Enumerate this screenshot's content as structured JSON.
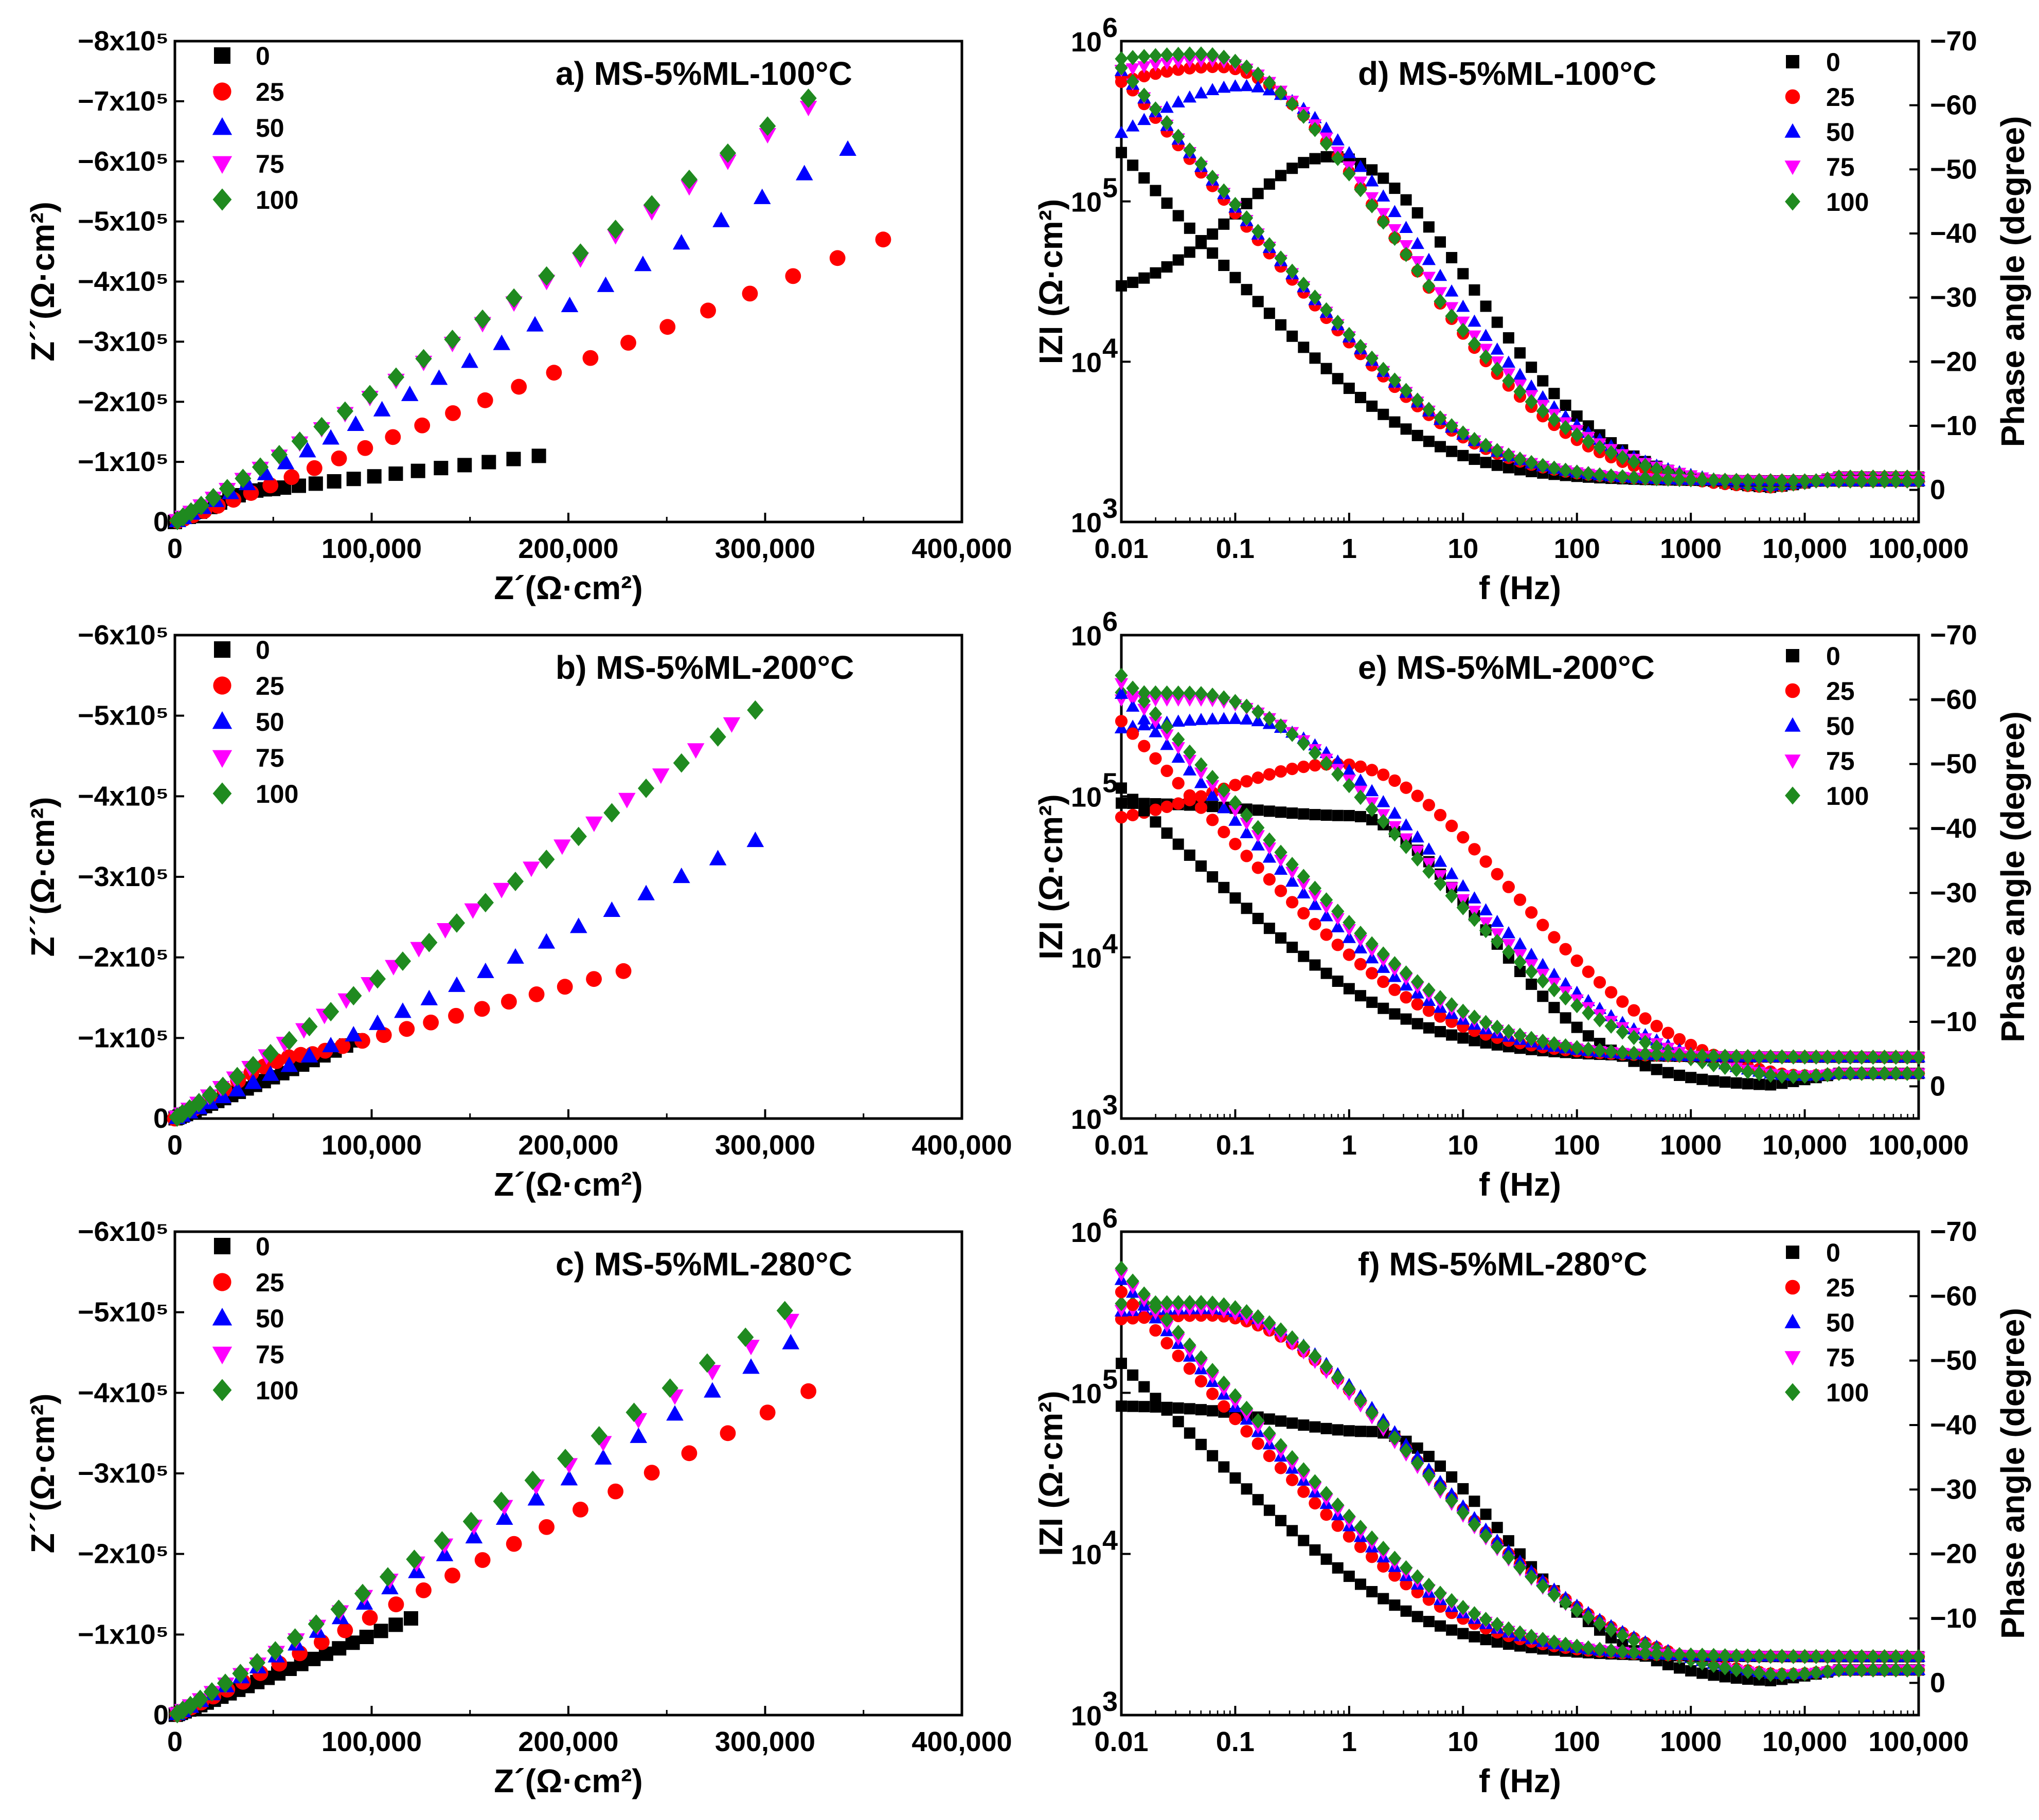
{
  "colors": {
    "s0": "#000000",
    "s25": "#ff0000",
    "s50": "#0000ff",
    "s75": "#ff00ff",
    "s100": "#1f8a1f"
  },
  "series_names": [
    "0",
    "25",
    "50",
    "75",
    "100"
  ],
  "chart_data": [
    {
      "id": "a",
      "type": "scatter",
      "title": "a) MS-5%ML-100°C",
      "xlabel": "Z´(Ω·cm²)",
      "ylabel": "Z´´(Ω·cm²)",
      "xlim": [
        0,
        400000
      ],
      "ylim": [
        0,
        -800000
      ],
      "xticks": [
        0,
        100000,
        200000,
        300000,
        400000
      ],
      "xtick_labels": [
        "0",
        "100,000",
        "200,000",
        "300,000",
        "400,000"
      ],
      "yticks": [
        0,
        -100000,
        -200000,
        -300000,
        -400000,
        -500000,
        -600000,
        -700000,
        -800000
      ],
      "ytick_labels": [
        "0",
        "−1x10⁵",
        "−2x10⁵",
        "−3x10⁵",
        "−4x10⁵",
        "−5x10⁵",
        "−6x10⁵",
        "−7x10⁵",
        "−8x10⁵"
      ],
      "series": [
        {
          "name": "0",
          "end": [
            185000,
            -110000
          ],
          "knee": [
            50000,
            -55000
          ]
        },
        {
          "name": "25",
          "end": [
            360000,
            -470000
          ]
        },
        {
          "name": "50",
          "end": [
            342000,
            -620000
          ]
        },
        {
          "name": "75",
          "end": [
            322000,
            -690000
          ]
        },
        {
          "name": "100",
          "end": [
            322000,
            -705000
          ]
        }
      ]
    },
    {
      "id": "b",
      "type": "scatter",
      "title": "b) MS-5%ML-200°C",
      "xlabel": "Z´(Ω·cm²)",
      "ylabel": "Z´´(Ω·cm²)",
      "xlim": [
        0,
        400000
      ],
      "ylim": [
        0,
        -600000
      ],
      "xticks": [
        0,
        100000,
        200000,
        300000,
        400000
      ],
      "xtick_labels": [
        "0",
        "100,000",
        "200,000",
        "300,000",
        "400,000"
      ],
      "yticks": [
        0,
        -100000,
        -200000,
        -300000,
        -400000,
        -500000,
        -600000
      ],
      "ytick_labels": [
        "0",
        "−1x10⁵",
        "−2x10⁵",
        "−3x10⁵",
        "−4x10⁵",
        "−5x10⁵",
        "−6x10⁵"
      ],
      "series": [
        {
          "name": "0",
          "end": [
            93000,
            -97000
          ]
        },
        {
          "name": "25",
          "end": [
            228000,
            -183000
          ],
          "knee": [
            70000,
            -80000
          ]
        },
        {
          "name": "50",
          "end": [
            295000,
            -345000
          ]
        },
        {
          "name": "75",
          "end": [
            283000,
            -490000
          ]
        },
        {
          "name": "100",
          "end": [
            295000,
            -507000
          ]
        }
      ]
    },
    {
      "id": "c",
      "type": "scatter",
      "title": "c) MS-5%ML-280°C",
      "xlabel": "Z´(Ω·cm²)",
      "ylabel": "Z´´(Ω·cm²)",
      "xlim": [
        0,
        400000
      ],
      "ylim": [
        0,
        -600000
      ],
      "xticks": [
        0,
        100000,
        200000,
        300000,
        400000
      ],
      "xtick_labels": [
        "0",
        "100,000",
        "200,000",
        "300,000",
        "400,000"
      ],
      "yticks": [
        0,
        -100000,
        -200000,
        -300000,
        -400000,
        -500000,
        -600000
      ],
      "ytick_labels": [
        "0",
        "−1x10⁵",
        "−2x10⁵",
        "−3x10⁵",
        "−4x10⁵",
        "−5x10⁵",
        "−6x10⁵"
      ],
      "series": [
        {
          "name": "0",
          "end": [
            120000,
            -120000
          ]
        },
        {
          "name": "25",
          "end": [
            322000,
            -402000
          ]
        },
        {
          "name": "50",
          "end": [
            313000,
            -462000
          ]
        },
        {
          "name": "75",
          "end": [
            313000,
            -490000
          ]
        },
        {
          "name": "100",
          "end": [
            310000,
            -502000
          ]
        }
      ]
    },
    {
      "id": "d",
      "type": "scatter",
      "title": "d) MS-5%ML-100°C",
      "xlabel": "f (Hz)",
      "ylabel": "IZI (Ω·cm²)",
      "y2label": "Phase angle (degree)",
      "xlim": [
        0.01,
        100000
      ],
      "ylim": [
        1000,
        1000000
      ],
      "y2lim": [
        5,
        -70
      ],
      "xtick_labels": [
        "0.01",
        "0.1",
        "1",
        "10",
        "100",
        "1000",
        "10,000",
        "100,000"
      ],
      "y2tick_labels": [
        "0",
        "−10",
        "−20",
        "−30",
        "−40",
        "−50",
        "−60",
        "−70"
      ],
      "y2ticks": [
        0,
        -10,
        -20,
        -30,
        -40,
        -50,
        -60,
        -70
      ],
      "mag_series": [
        {
          "name": "0",
          "lowZ": 200000,
          "Rs": 1800,
          "slope": 0.8
        },
        {
          "name": "25",
          "lowZ": 600000,
          "Rs": 1800,
          "slope": 0.86
        },
        {
          "name": "50",
          "lowZ": 650000,
          "Rs": 1800,
          "slope": 0.86
        },
        {
          "name": "75",
          "lowZ": 660000,
          "Rs": 1800,
          "slope": 0.86
        },
        {
          "name": "100",
          "lowZ": 680000,
          "Rs": 1800,
          "slope": 0.86
        }
      ],
      "phase_series": [
        {
          "name": "0",
          "peak": -52,
          "fpeak": 0.7,
          "width": 1.3,
          "start": -30
        },
        {
          "name": "25",
          "peak": -66,
          "fpeak": 0.07,
          "width": 1.6,
          "start": -58
        },
        {
          "name": "50",
          "peak": -63,
          "fpeak": 0.12,
          "width": 1.6,
          "start": -46
        },
        {
          "name": "75",
          "peak": -67,
          "fpeak": 0.06,
          "width": 1.7,
          "start": -60
        },
        {
          "name": "100",
          "peak": -68,
          "fpeak": 0.05,
          "width": 1.7,
          "start": -64
        }
      ]
    },
    {
      "id": "e",
      "type": "scatter",
      "title": "e) MS-5%ML-200°C",
      "xlabel": "f (Hz)",
      "ylabel": "IZI (Ω·cm²)",
      "y2label": "Phase angle (degree)",
      "xlim": [
        0.01,
        100000
      ],
      "ylim": [
        1000,
        1000000
      ],
      "y2lim": [
        5,
        -70
      ],
      "xtick_labels": [
        "0.01",
        "0.1",
        "1",
        "10",
        "100",
        "1000",
        "10,000",
        "100,000"
      ],
      "y2tick_labels": [
        "0",
        "−10",
        "−20",
        "−30",
        "−40",
        "−50",
        "−60",
        "−70"
      ],
      "y2ticks": [
        0,
        -10,
        -20,
        -30,
        -40,
        -50,
        -60,
        -70
      ],
      "mag_series": [
        {
          "name": "0",
          "lowZ": 110000,
          "Rs": 2400,
          "slope": 0.72
        },
        {
          "name": "25",
          "lowZ": 290000,
          "Rs": 2400,
          "slope": 0.78
        },
        {
          "name": "50",
          "lowZ": 430000,
          "Rs": 2400,
          "slope": 0.8
        },
        {
          "name": "75",
          "lowZ": 500000,
          "Rs": 2400,
          "slope": 0.8
        },
        {
          "name": "100",
          "lowZ": 560000,
          "Rs": 2400,
          "slope": 0.8
        }
      ],
      "phase_series": [
        {
          "name": "0",
          "peak": -42,
          "fpeak": 1.0,
          "width": 1.2,
          "start": -44
        },
        {
          "name": "25",
          "peak": -50,
          "fpeak": 0.8,
          "width": 1.6,
          "start": -40
        },
        {
          "name": "50",
          "peak": -57,
          "fpeak": 0.1,
          "width": 1.9,
          "start": -52
        },
        {
          "name": "75",
          "peak": -60,
          "fpeak": 0.05,
          "width": 2.0,
          "start": -60
        },
        {
          "name": "100",
          "peak": -61,
          "fpeak": 0.04,
          "width": 2.0,
          "start": -62
        }
      ]
    },
    {
      "id": "f",
      "type": "scatter",
      "title": "f) MS-5%ML-280°C",
      "xlabel": "f (Hz)",
      "ylabel": "IZI (Ω·cm²)",
      "y2label": "Phase angle (degree)",
      "xlim": [
        0.01,
        100000
      ],
      "ylim": [
        1000,
        1000000
      ],
      "y2lim": [
        5,
        -70
      ],
      "xtick_labels": [
        "0.01",
        "0.1",
        "1",
        "10",
        "100",
        "1000",
        "10,000",
        "100,000"
      ],
      "y2tick_labels": [
        "0",
        "−10",
        "−20",
        "−30",
        "−40",
        "−50",
        "−60",
        "−70"
      ],
      "y2ticks": [
        0,
        -10,
        -20,
        -30,
        -40,
        -50,
        -60,
        -70
      ],
      "mag_series": [
        {
          "name": "0",
          "lowZ": 150000,
          "Rs": 2300,
          "slope": 0.74
        },
        {
          "name": "25",
          "lowZ": 420000,
          "Rs": 2300,
          "slope": 0.8
        },
        {
          "name": "50",
          "lowZ": 500000,
          "Rs": 2300,
          "slope": 0.8
        },
        {
          "name": "75",
          "lowZ": 540000,
          "Rs": 2300,
          "slope": 0.8
        },
        {
          "name": "100",
          "lowZ": 590000,
          "Rs": 2300,
          "slope": 0.8
        }
      ],
      "phase_series": [
        {
          "name": "0",
          "peak": -39,
          "fpeak": 1.5,
          "width": 1.2,
          "start": -43
        },
        {
          "name": "25",
          "peak": -57,
          "fpeak": 0.06,
          "width": 1.9,
          "start": -54
        },
        {
          "name": "50",
          "peak": -58,
          "fpeak": 0.06,
          "width": 1.9,
          "start": -56
        },
        {
          "name": "75",
          "peak": -58,
          "fpeak": 0.05,
          "width": 1.9,
          "start": -57
        },
        {
          "name": "100",
          "peak": -59,
          "fpeak": 0.05,
          "width": 1.9,
          "start": -58
        }
      ]
    }
  ]
}
